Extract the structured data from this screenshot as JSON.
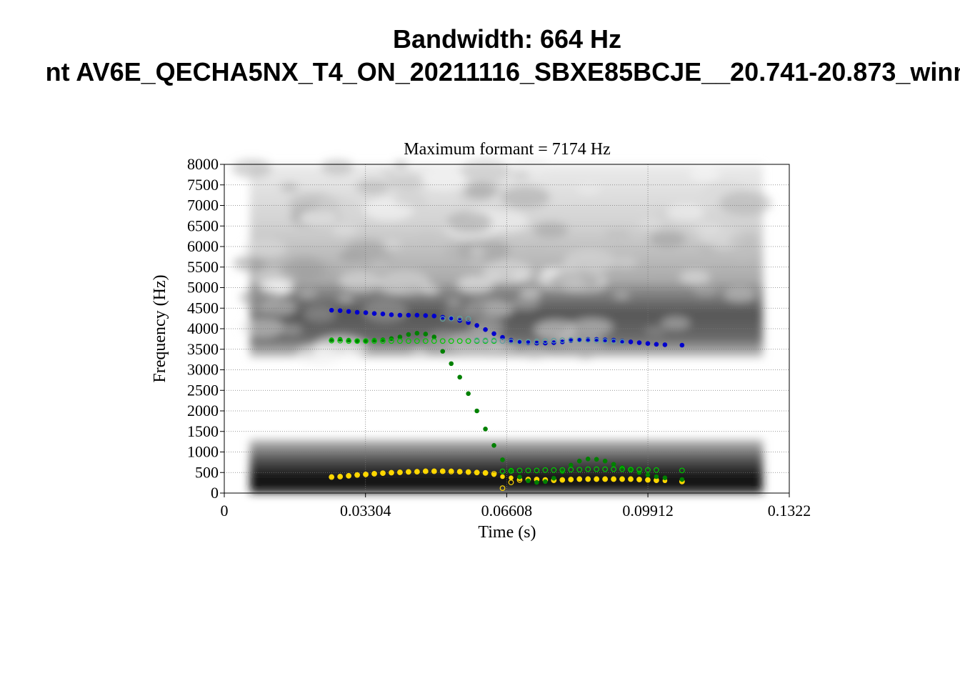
{
  "titles": {
    "main": "Bandwidth: 664 Hz",
    "sub": "nt AV6E_QECHA5NX_T4_ON_20211116_SBXE85BCJE__20.741-20.873_winn"
  },
  "chart_data": {
    "type": "scatter",
    "title": "Maximum formant  =  7174 Hz",
    "xlabel": "Time (s)",
    "ylabel": "Frequency (Hz)",
    "xlim": [
      0,
      0.1322
    ],
    "ylim": [
      0,
      8000
    ],
    "x_ticks": [
      "0",
      "0.03304",
      "0.06608",
      "0.09912",
      "0.1322"
    ],
    "y_ticks": [
      "0",
      "500",
      "1000",
      "1500",
      "2000",
      "2500",
      "3000",
      "3500",
      "4000",
      "4500",
      "5000",
      "5500",
      "6000",
      "6500",
      "7000",
      "7500",
      "8000"
    ],
    "grid": true,
    "background": "spectrogram (grayscale)",
    "spectrogram_bands": [
      {
        "f_low": 0,
        "f_high": 1300,
        "intensity": "dark"
      },
      {
        "f_low": 3300,
        "f_high": 5100,
        "intensity": "medium"
      },
      {
        "f_low": 5100,
        "f_high": 8000,
        "intensity": "light"
      }
    ],
    "series": [
      {
        "color": "#ffd700",
        "marker": "filled",
        "x": [
          0.0251,
          0.0271,
          0.0291,
          0.0311,
          0.0331,
          0.0351,
          0.0371,
          0.0391,
          0.0411,
          0.0431,
          0.0451,
          0.0471,
          0.0491,
          0.0511,
          0.0531,
          0.0551,
          0.0571,
          0.0591,
          0.0611,
          0.0631,
          0.0651,
          0.0671,
          0.0691,
          0.0711,
          0.0731,
          0.0751,
          0.0771,
          0.0791,
          0.0811,
          0.0831,
          0.0851,
          0.0871,
          0.0891,
          0.0911,
          0.0931,
          0.0951,
          0.0971,
          0.0991,
          0.1011,
          0.1031,
          0.1071
        ],
        "y": [
          400,
          410,
          430,
          450,
          460,
          480,
          490,
          500,
          510,
          520,
          530,
          540,
          540,
          540,
          540,
          530,
          520,
          510,
          490,
          450,
          400,
          370,
          350,
          340,
          330,
          320,
          320,
          330,
          330,
          340,
          340,
          340,
          340,
          340,
          340,
          340,
          330,
          320,
          310,
          300,
          290
        ]
      },
      {
        "color": "#ffd700",
        "marker": "hollow",
        "x": [
          0.0251,
          0.0271,
          0.0291,
          0.0311,
          0.0331,
          0.0351,
          0.0371,
          0.0391,
          0.0411,
          0.0431,
          0.0451,
          0.0471,
          0.0491,
          0.0511,
          0.0531,
          0.0551,
          0.0571,
          0.0591,
          0.0611,
          0.0631,
          0.0651,
          0.0671,
          0.0691,
          0.0711,
          0.0731,
          0.0751,
          0.0771,
          0.0791,
          0.0811,
          0.0831,
          0.0851,
          0.0871,
          0.0891,
          0.0911,
          0.0931,
          0.0951,
          0.0971,
          0.0991,
          0.1011,
          0.1071
        ],
        "y": [
          390,
          400,
          420,
          440,
          455,
          470,
          485,
          495,
          505,
          515,
          520,
          530,
          530,
          530,
          525,
          520,
          510,
          500,
          490,
          470,
          120,
          260,
          320,
          330,
          330,
          320,
          310,
          320,
          330,
          340,
          340,
          340,
          340,
          340,
          340,
          340,
          330,
          320,
          310,
          280
        ]
      },
      {
        "color": "#008000",
        "marker": "filled",
        "x": [
          0.0251,
          0.0271,
          0.0291,
          0.0311,
          0.0331,
          0.0351,
          0.0371,
          0.0391,
          0.0411,
          0.0431,
          0.0451,
          0.0471,
          0.0491,
          0.0511,
          0.0531,
          0.0551,
          0.0571,
          0.0591,
          0.0611,
          0.0631,
          0.0651,
          0.0671,
          0.0691,
          0.0711,
          0.0731,
          0.0751,
          0.0771,
          0.0791,
          0.0811,
          0.0831,
          0.0851,
          0.0871,
          0.0891,
          0.0911,
          0.0931,
          0.0951,
          0.0971,
          0.0991,
          0.1011,
          0.1031,
          0.1071
        ],
        "y": [
          3730,
          3740,
          3720,
          3690,
          3700,
          3720,
          3730,
          3760,
          3800,
          3860,
          3890,
          3870,
          3800,
          3450,
          3150,
          2820,
          2420,
          2000,
          1560,
          1160,
          810,
          560,
          390,
          300,
          260,
          280,
          360,
          520,
          680,
          780,
          830,
          820,
          780,
          700,
          620,
          560,
          500,
          440,
          400,
          370,
          330
        ]
      },
      {
        "color": "#00c800",
        "marker": "hollow",
        "x": [
          0.0251,
          0.0271,
          0.0291,
          0.0311,
          0.0331,
          0.0351,
          0.0371,
          0.0391,
          0.0411,
          0.0431,
          0.0451,
          0.0471,
          0.0491,
          0.0511,
          0.0531,
          0.0551,
          0.0571,
          0.0591,
          0.0611,
          0.0631,
          0.0651,
          0.0671,
          0.0691,
          0.0711,
          0.0731,
          0.0751,
          0.0771,
          0.0791,
          0.0811,
          0.0831,
          0.0851,
          0.0871,
          0.0891,
          0.0911,
          0.0931,
          0.0951,
          0.0971,
          0.0991,
          0.1011,
          0.1071
        ],
        "y": [
          3710,
          3710,
          3700,
          3700,
          3700,
          3700,
          3700,
          3700,
          3700,
          3700,
          3700,
          3700,
          3700,
          3700,
          3700,
          3700,
          3700,
          3700,
          3700,
          3700,
          530,
          540,
          550,
          550,
          550,
          560,
          560,
          560,
          570,
          570,
          580,
          580,
          580,
          580,
          580,
          570,
          570,
          560,
          560,
          550
        ]
      },
      {
        "color": "#0000cd",
        "marker": "filled",
        "x": [
          0.0251,
          0.0271,
          0.0291,
          0.0311,
          0.0331,
          0.0351,
          0.0371,
          0.0391,
          0.0411,
          0.0431,
          0.0451,
          0.0471,
          0.0491,
          0.0511,
          0.0531,
          0.0551,
          0.0571,
          0.0591,
          0.0611,
          0.0631,
          0.0651,
          0.0671,
          0.0691,
          0.0711,
          0.0731,
          0.0751,
          0.0771,
          0.0791,
          0.0811,
          0.0831,
          0.0851,
          0.0871,
          0.0891,
          0.0911,
          0.0931,
          0.0951,
          0.0971,
          0.0991,
          0.1011,
          0.1031,
          0.1071
        ],
        "y": [
          4450,
          4440,
          4420,
          4400,
          4390,
          4370,
          4360,
          4340,
          4330,
          4330,
          4330,
          4320,
          4310,
          4280,
          4240,
          4200,
          4150,
          4080,
          3980,
          3880,
          3790,
          3720,
          3680,
          3660,
          3650,
          3650,
          3660,
          3680,
          3710,
          3730,
          3740,
          3740,
          3730,
          3720,
          3700,
          3680,
          3660,
          3640,
          3620,
          3610,
          3600
        ]
      },
      {
        "color": "#5f9ea0",
        "marker": "hollow",
        "x": [
          0.0511,
          0.0531,
          0.0551,
          0.0571,
          0.0591,
          0.0611,
          0.0631,
          0.0651,
          0.0671,
          0.0691,
          0.0711,
          0.0731,
          0.0751,
          0.0771,
          0.0791,
          0.0811,
          0.0831,
          0.0851,
          0.0871,
          0.0891,
          0.0911,
          0.0931
        ],
        "y": [
          4240,
          4250,
          4250,
          4240,
          3720,
          3720,
          3720,
          3700,
          3690,
          3680,
          3680,
          3690,
          3700,
          3710,
          3720,
          3730,
          3730,
          3720,
          3710,
          3700,
          3690,
          3680
        ]
      }
    ]
  }
}
